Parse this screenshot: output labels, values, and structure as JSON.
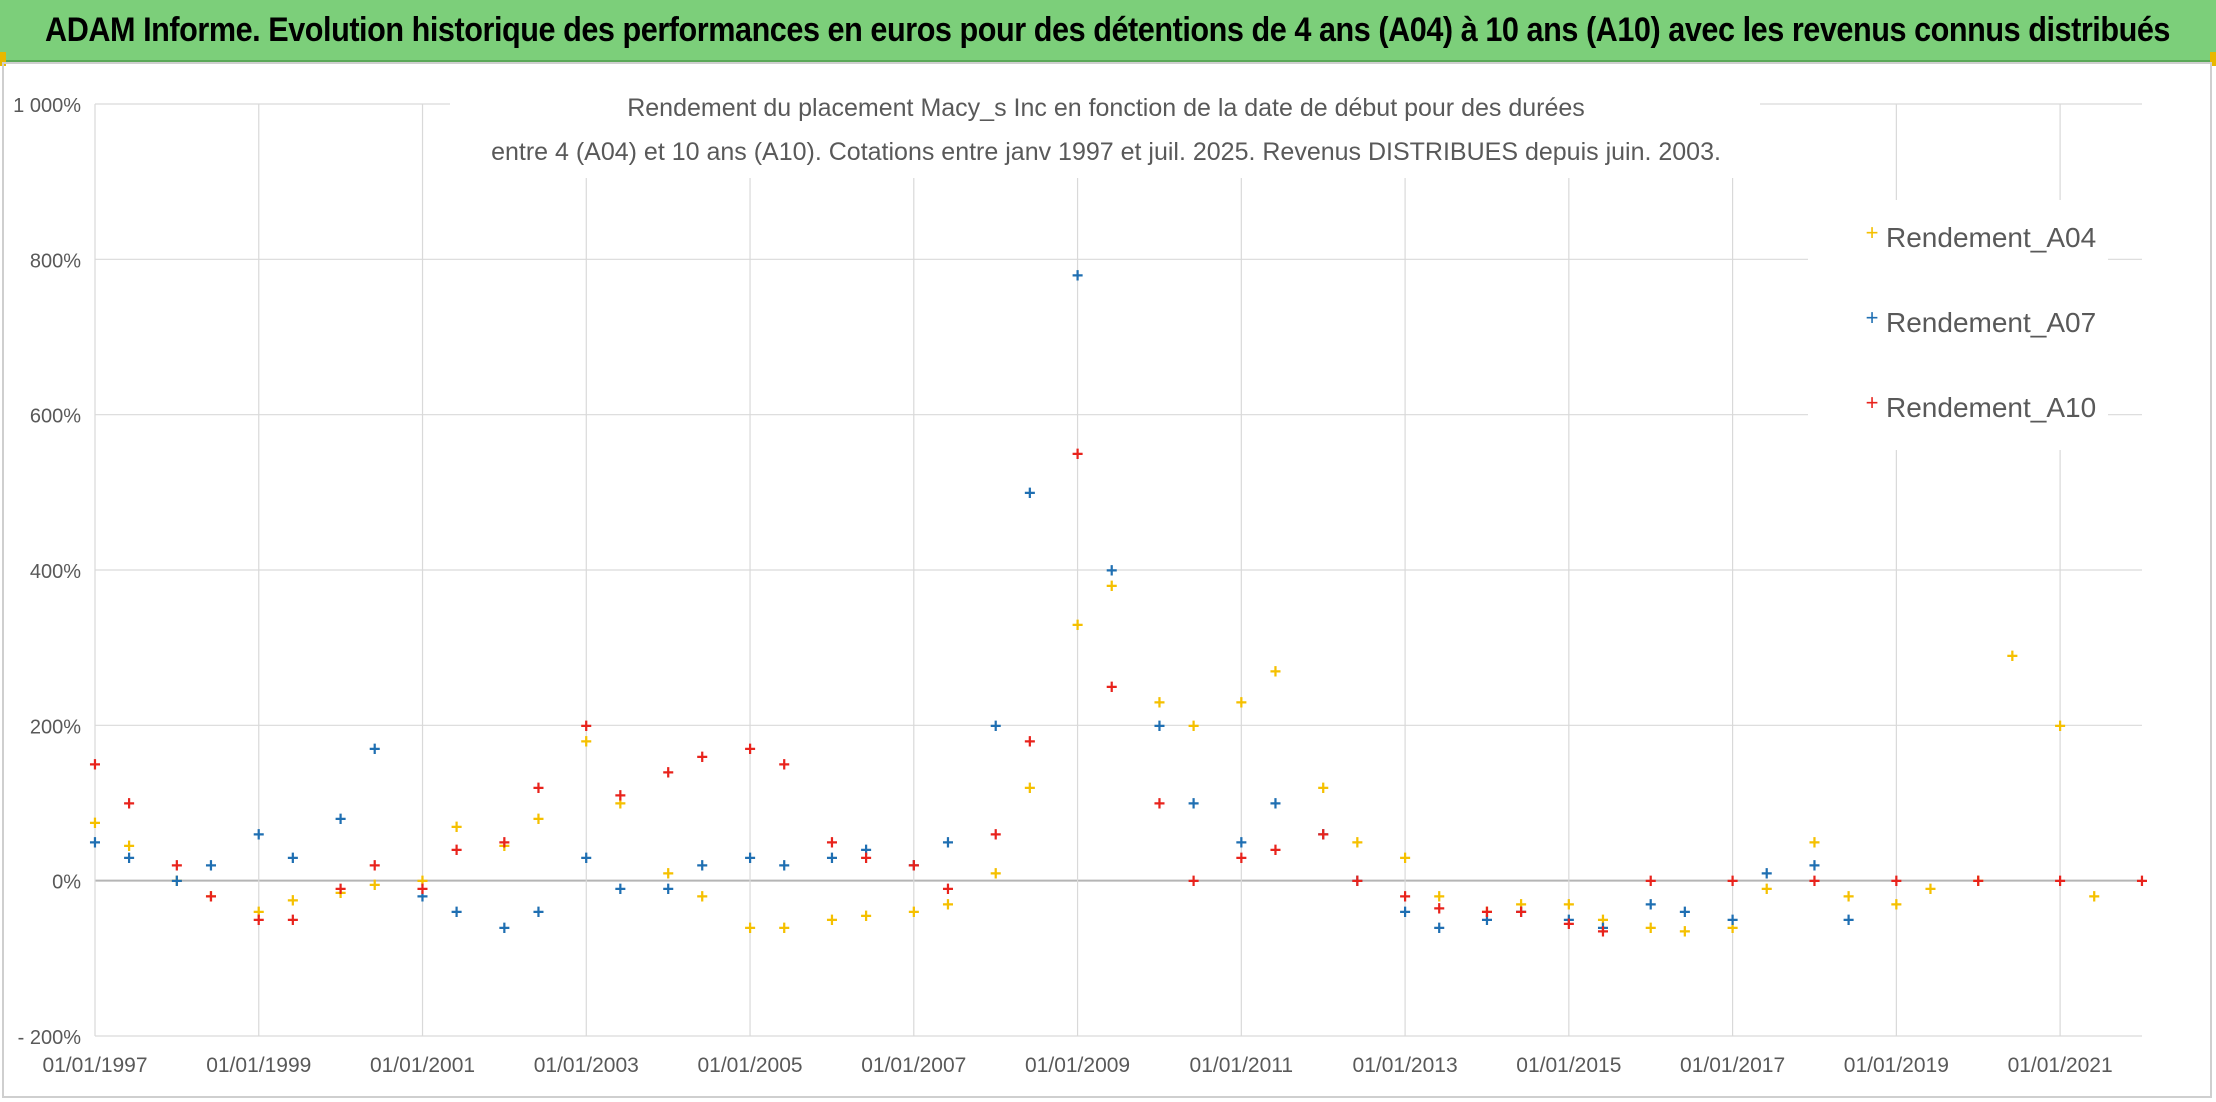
{
  "header": {
    "banner_title": "ADAM Informe. Evolution historique des performances en euros pour des détentions de 4 ans (A04) à 10 ans (A10) avec les revenus connus distribués"
  },
  "chart_data": {
    "type": "scatter",
    "title_line1": "Rendement du placement Macy_s Inc en fonction de la date de début pour des durées",
    "title_line2": "entre 4 (A04) et 10 ans (A10). Cotations entre janv 1997 et juil. 2025. Revenus DISTRIBUES depuis juin. 2003.",
    "xlabel": "",
    "ylabel": "",
    "x_ticks": [
      "01/01/1997",
      "01/01/1999",
      "01/01/2001",
      "01/01/2003",
      "01/01/2005",
      "01/01/2007",
      "01/01/2009",
      "01/01/2011",
      "01/01/2013",
      "01/01/2015",
      "01/01/2017",
      "01/01/2019",
      "01/01/2021"
    ],
    "y_ticks": [
      "- 200%",
      "0%",
      "200%",
      "400%",
      "600%",
      "800%",
      "1 000%"
    ],
    "xlim": [
      "1997-01-01",
      "2022-01-01"
    ],
    "ylim": [
      -200,
      1000
    ],
    "grid": true,
    "marker": "+",
    "legend_position": "top-right",
    "series": [
      {
        "name": "Rendement_A04",
        "color": "#f5c000",
        "points": [
          [
            "1997-01-01",
            75
          ],
          [
            "1997-06-01",
            45
          ],
          [
            "1998-01-01",
            0
          ],
          [
            "1998-06-01",
            -20
          ],
          [
            "1999-01-01",
            -40
          ],
          [
            "1999-06-01",
            -25
          ],
          [
            "2000-01-01",
            -15
          ],
          [
            "2000-06-01",
            -5
          ],
          [
            "2001-01-01",
            0
          ],
          [
            "2001-06-01",
            70
          ],
          [
            "2002-01-01",
            45
          ],
          [
            "2002-06-01",
            80
          ],
          [
            "2003-01-01",
            180
          ],
          [
            "2003-06-01",
            100
          ],
          [
            "2004-01-01",
            10
          ],
          [
            "2004-06-01",
            -20
          ],
          [
            "2005-01-01",
            -60
          ],
          [
            "2005-06-01",
            -60
          ],
          [
            "2006-01-01",
            -50
          ],
          [
            "2006-06-01",
            -45
          ],
          [
            "2007-01-01",
            -40
          ],
          [
            "2007-06-01",
            -30
          ],
          [
            "2008-01-01",
            10
          ],
          [
            "2008-06-01",
            120
          ],
          [
            "2009-01-01",
            330
          ],
          [
            "2009-06-01",
            380
          ],
          [
            "2010-01-01",
            230
          ],
          [
            "2010-06-01",
            200
          ],
          [
            "2011-01-01",
            230
          ],
          [
            "2011-06-01",
            270
          ],
          [
            "2012-01-01",
            120
          ],
          [
            "2012-06-01",
            50
          ],
          [
            "2013-01-01",
            30
          ],
          [
            "2013-06-01",
            -20
          ],
          [
            "2014-01-01",
            -40
          ],
          [
            "2014-06-01",
            -30
          ],
          [
            "2015-01-01",
            -30
          ],
          [
            "2015-06-01",
            -50
          ],
          [
            "2016-01-01",
            -60
          ],
          [
            "2016-06-01",
            -65
          ],
          [
            "2017-01-01",
            -60
          ],
          [
            "2017-06-01",
            -10
          ],
          [
            "2018-01-01",
            50
          ],
          [
            "2018-06-01",
            -20
          ],
          [
            "2019-01-01",
            -30
          ],
          [
            "2019-06-01",
            -10
          ],
          [
            "2020-01-01",
            0
          ],
          [
            "2020-06-01",
            290
          ],
          [
            "2021-01-01",
            200
          ],
          [
            "2021-06-01",
            -20
          ]
        ]
      },
      {
        "name": "Rendement_A07",
        "color": "#1f6fb2",
        "points": [
          [
            "1997-01-01",
            50
          ],
          [
            "1997-06-01",
            30
          ],
          [
            "1998-01-01",
            0
          ],
          [
            "1998-06-01",
            20
          ],
          [
            "1999-01-01",
            60
          ],
          [
            "1999-06-01",
            30
          ],
          [
            "2000-01-01",
            80
          ],
          [
            "2000-06-01",
            170
          ],
          [
            "2001-01-01",
            -20
          ],
          [
            "2001-06-01",
            -40
          ],
          [
            "2002-01-01",
            -60
          ],
          [
            "2002-06-01",
            -40
          ],
          [
            "2003-01-01",
            30
          ],
          [
            "2003-06-01",
            -10
          ],
          [
            "2004-01-01",
            -10
          ],
          [
            "2004-06-01",
            20
          ],
          [
            "2005-01-01",
            30
          ],
          [
            "2005-06-01",
            20
          ],
          [
            "2006-01-01",
            30
          ],
          [
            "2006-06-01",
            40
          ],
          [
            "2007-01-01",
            20
          ],
          [
            "2007-06-01",
            50
          ],
          [
            "2008-01-01",
            200
          ],
          [
            "2008-06-01",
            500
          ],
          [
            "2009-01-01",
            780
          ],
          [
            "2009-06-01",
            400
          ],
          [
            "2010-01-01",
            200
          ],
          [
            "2010-06-01",
            100
          ],
          [
            "2011-01-01",
            50
          ],
          [
            "2011-06-01",
            100
          ],
          [
            "2012-01-01",
            60
          ],
          [
            "2012-06-01",
            0
          ],
          [
            "2013-01-01",
            -40
          ],
          [
            "2013-06-01",
            -60
          ],
          [
            "2014-01-01",
            -50
          ],
          [
            "2014-06-01",
            -40
          ],
          [
            "2015-01-01",
            -50
          ],
          [
            "2015-06-01",
            -60
          ],
          [
            "2016-01-01",
            -30
          ],
          [
            "2016-06-01",
            -40
          ],
          [
            "2017-01-01",
            -50
          ],
          [
            "2017-06-01",
            10
          ],
          [
            "2018-01-01",
            20
          ],
          [
            "2018-06-01",
            -50
          ]
        ]
      },
      {
        "name": "Rendement_A10",
        "color": "#e8231c",
        "points": [
          [
            "1997-01-01",
            150
          ],
          [
            "1997-06-01",
            100
          ],
          [
            "1998-01-01",
            20
          ],
          [
            "1998-06-01",
            -20
          ],
          [
            "1999-01-01",
            -50
          ],
          [
            "1999-06-01",
            -50
          ],
          [
            "2000-01-01",
            -10
          ],
          [
            "2000-06-01",
            20
          ],
          [
            "2001-01-01",
            -10
          ],
          [
            "2001-06-01",
            40
          ],
          [
            "2002-01-01",
            50
          ],
          [
            "2002-06-01",
            120
          ],
          [
            "2003-01-01",
            200
          ],
          [
            "2003-06-01",
            110
          ],
          [
            "2004-01-01",
            140
          ],
          [
            "2004-06-01",
            160
          ],
          [
            "2005-01-01",
            170
          ],
          [
            "2005-06-01",
            150
          ],
          [
            "2006-01-01",
            50
          ],
          [
            "2006-06-01",
            30
          ],
          [
            "2007-01-01",
            20
          ],
          [
            "2007-06-01",
            -10
          ],
          [
            "2008-01-01",
            60
          ],
          [
            "2008-06-01",
            180
          ],
          [
            "2009-01-01",
            550
          ],
          [
            "2009-06-01",
            250
          ],
          [
            "2010-01-01",
            100
          ],
          [
            "2010-06-01",
            0
          ],
          [
            "2011-01-01",
            30
          ],
          [
            "2011-06-01",
            40
          ],
          [
            "2012-01-01",
            60
          ],
          [
            "2012-06-01",
            0
          ],
          [
            "2013-01-01",
            -20
          ],
          [
            "2013-06-01",
            -35
          ],
          [
            "2014-01-01",
            -40
          ],
          [
            "2014-06-01",
            -40
          ],
          [
            "2015-01-01",
            -55
          ],
          [
            "2015-06-01",
            -65
          ],
          [
            "2016-01-01",
            0
          ],
          [
            "2017-01-01",
            0
          ],
          [
            "2018-01-01",
            0
          ],
          [
            "2019-01-01",
            0
          ],
          [
            "2020-01-01",
            0
          ],
          [
            "2021-01-01",
            0
          ],
          [
            "2022-01-01",
            0
          ]
        ]
      }
    ]
  }
}
